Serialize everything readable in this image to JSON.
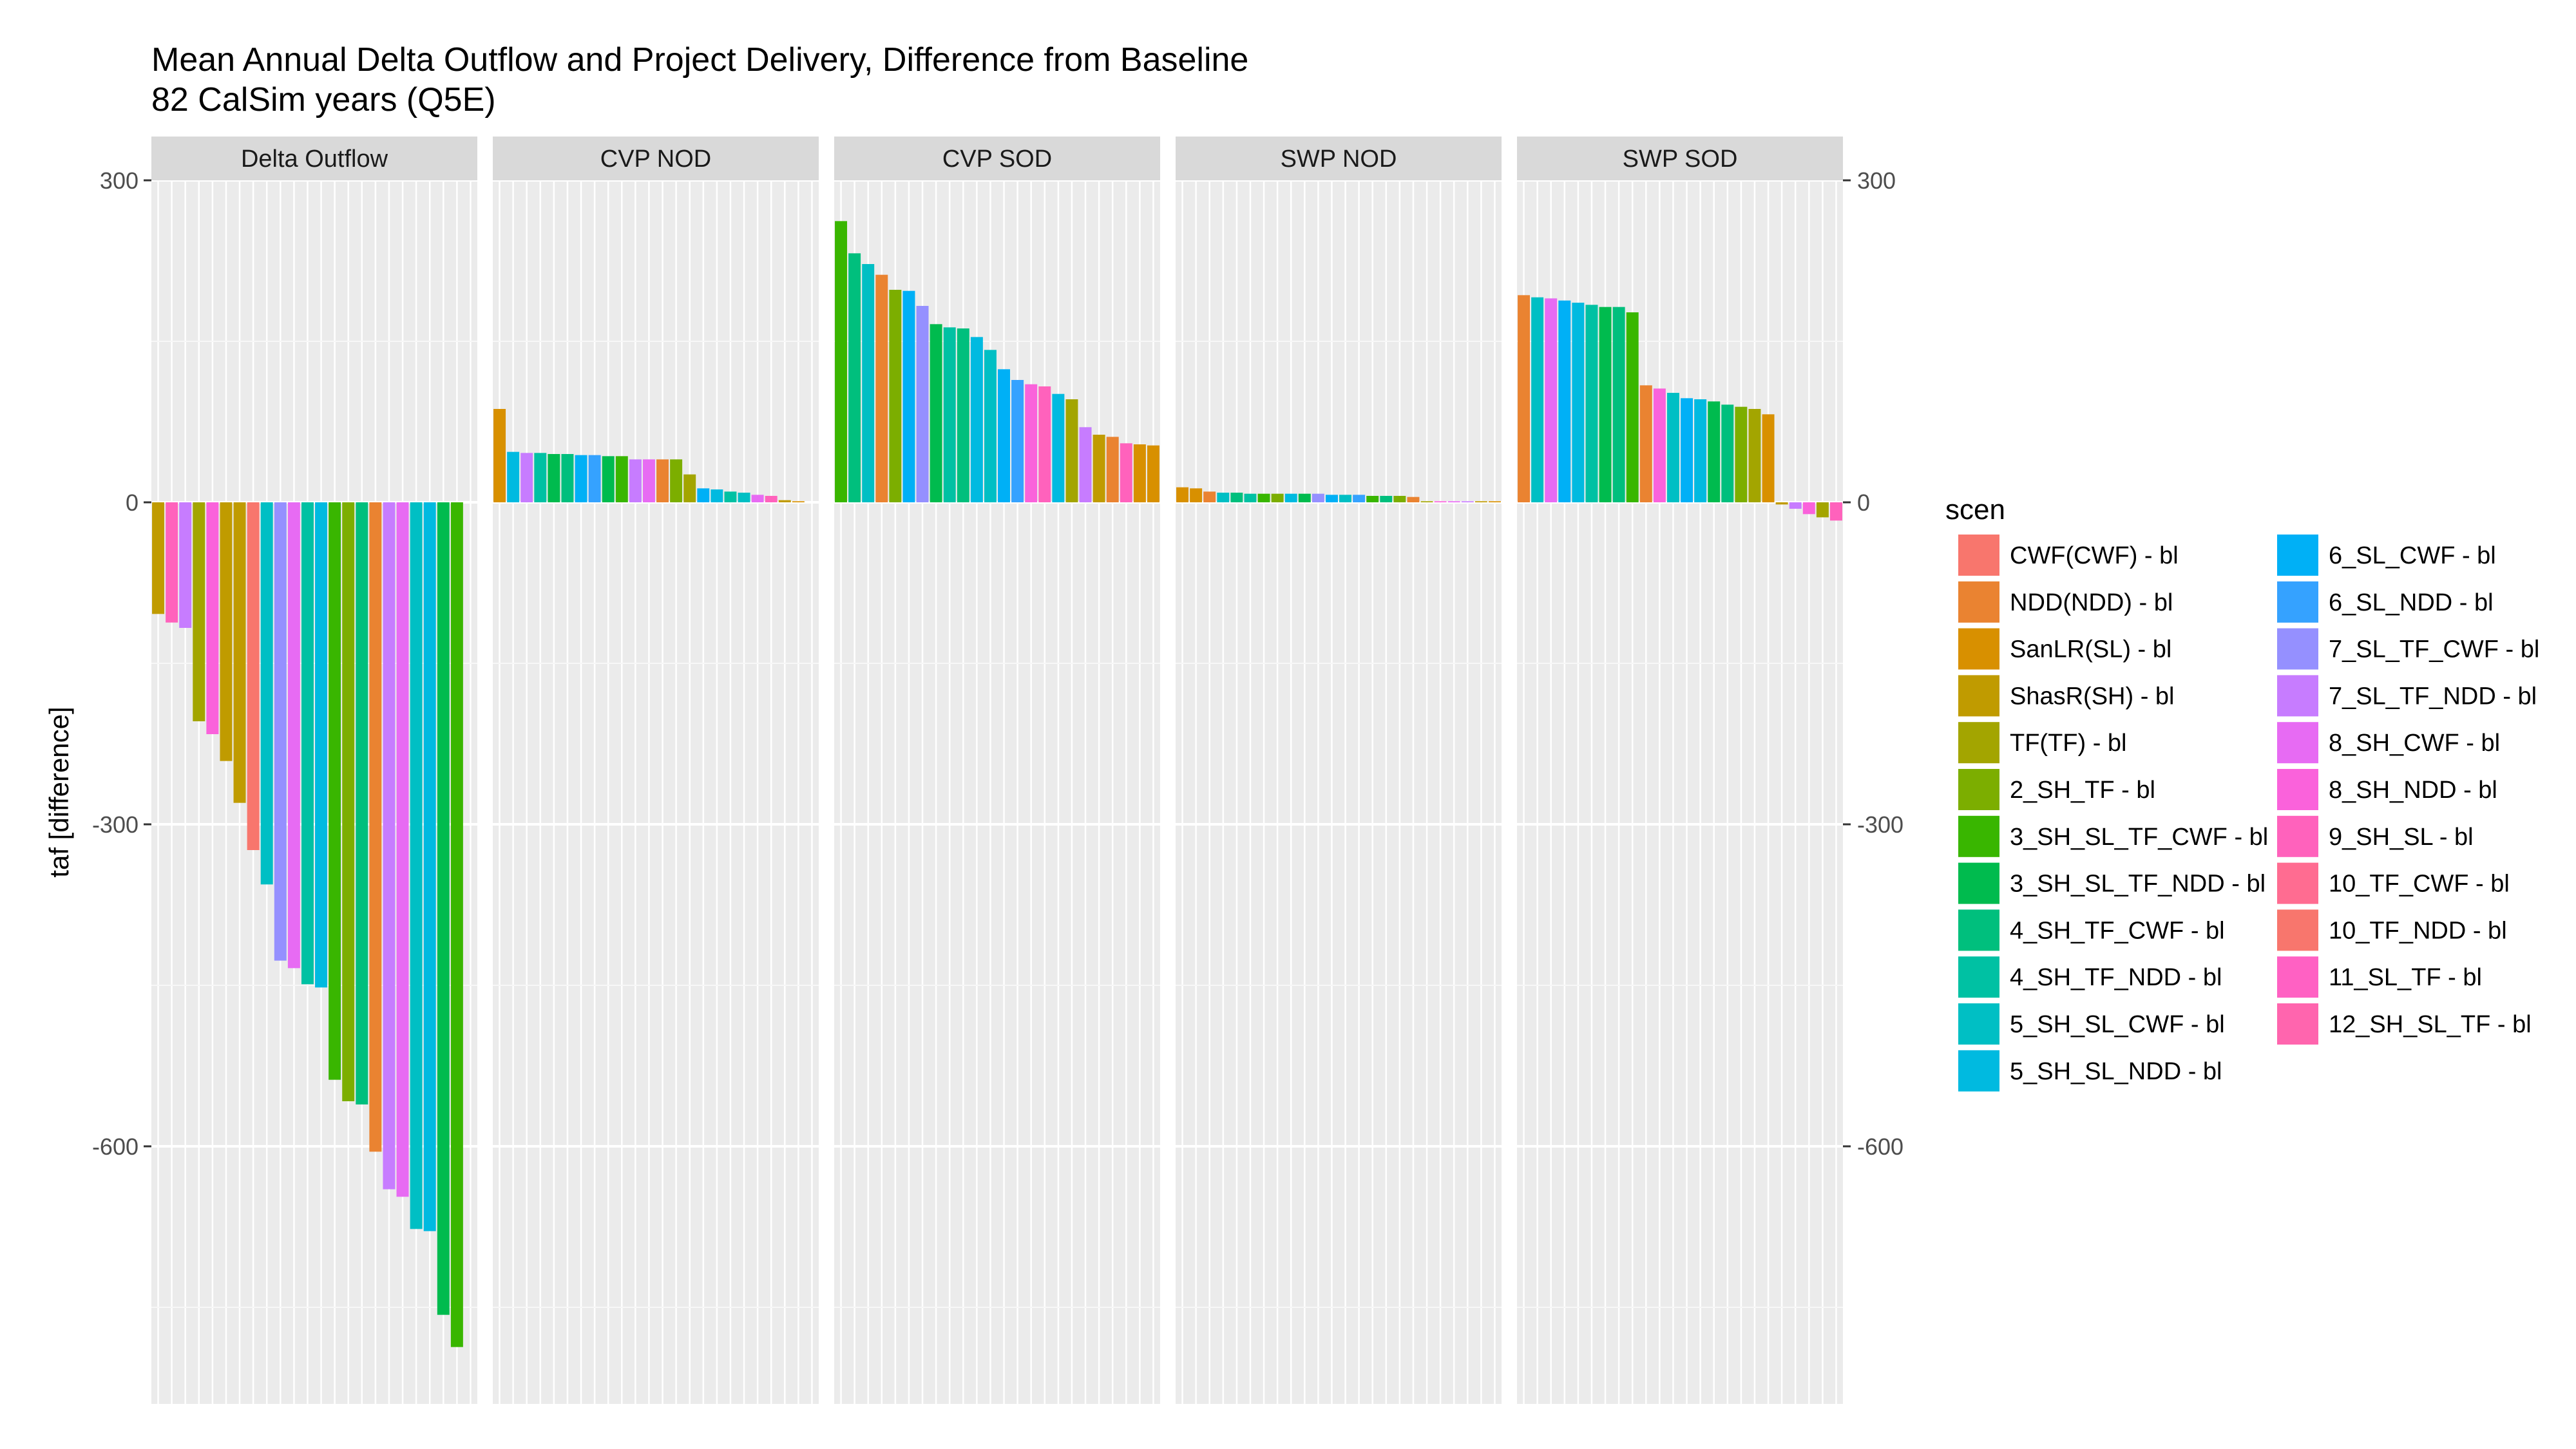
{
  "chart_data": {
    "type": "bar",
    "title": "Mean Annual Delta Outflow and Project Delivery, Difference from Baseline",
    "subtitle": "82 CalSim years (Q5E)",
    "ylabel": "taf [difference]",
    "xlabel": "",
    "ylim": [
      -840,
      300
    ],
    "yticks": [
      300,
      0,
      -300,
      -600
    ],
    "grid": true,
    "secondary_y_axis": true,
    "legend_title": "scen",
    "legend_position": "right",
    "scenarios": [
      {
        "name": "CWF(CWF) - bl",
        "color": "#F8766D"
      },
      {
        "name": "NDD(NDD) - bl",
        "color": "#EA8331"
      },
      {
        "name": "SanLR(SL) - bl",
        "color": "#D89000"
      },
      {
        "name": "ShasR(SH) - bl",
        "color": "#C09B00"
      },
      {
        "name": "TF(TF) - bl",
        "color": "#A3A500"
      },
      {
        "name": "2_SH_TF - bl",
        "color": "#7CAE00"
      },
      {
        "name": "3_SH_SL_TF_CWF - bl",
        "color": "#39B600"
      },
      {
        "name": "3_SH_SL_TF_NDD - bl",
        "color": "#00BB4E"
      },
      {
        "name": "4_SH_TF_CWF - bl",
        "color": "#00BF7D"
      },
      {
        "name": "4_SH_TF_NDD - bl",
        "color": "#00C1A3"
      },
      {
        "name": "5_SH_SL_CWF - bl",
        "color": "#00BFC4"
      },
      {
        "name": "5_SH_SL_NDD - bl",
        "color": "#00BAE0"
      },
      {
        "name": "6_SL_CWF - bl",
        "color": "#00B0F6"
      },
      {
        "name": "6_SL_NDD - bl",
        "color": "#35A2FF"
      },
      {
        "name": "7_SL_TF_CWF - bl",
        "color": "#9590FF"
      },
      {
        "name": "7_SL_TF_NDD - bl",
        "color": "#C77CFF"
      },
      {
        "name": "8_SH_CWF - bl",
        "color": "#E76BF3"
      },
      {
        "name": "8_SH_NDD - bl",
        "color": "#FA62DB"
      },
      {
        "name": "9_SH_SL - bl",
        "color": "#FF62BC"
      },
      {
        "name": "10_TF_CWF - bl",
        "color": "#FF6C91"
      },
      {
        "name": "10_TF_NDD - bl",
        "color": "#F8766D"
      },
      {
        "name": "11_SL_TF - bl",
        "color": "#FF61C3"
      },
      {
        "name": "12_SH_SL_TF - bl",
        "color": "#FF65AE"
      }
    ],
    "panels": [
      {
        "name": "Delta Outflow",
        "bars": [
          {
            "value": -104,
            "color": "#C09B00"
          },
          {
            "value": -112,
            "color": "#FF62BC"
          },
          {
            "value": -117,
            "color": "#C77CFF"
          },
          {
            "value": -204,
            "color": "#A3A500"
          },
          {
            "value": -216,
            "color": "#FA62DB"
          },
          {
            "value": -241,
            "color": "#C09B00"
          },
          {
            "value": -280,
            "color": "#C09B00"
          },
          {
            "value": -324,
            "color": "#F8766D"
          },
          {
            "value": -356,
            "color": "#00BFC4"
          },
          {
            "value": -427,
            "color": "#9590FF"
          },
          {
            "value": -434,
            "color": "#E76BF3"
          },
          {
            "value": -449,
            "color": "#00C1A3"
          },
          {
            "value": -452,
            "color": "#00BAE0"
          },
          {
            "value": -538,
            "color": "#39B600"
          },
          {
            "value": -558,
            "color": "#7CAE00"
          },
          {
            "value": -561,
            "color": "#00BF7D"
          },
          {
            "value": -605,
            "color": "#EA8331"
          },
          {
            "value": -640,
            "color": "#C77CFF"
          },
          {
            "value": -647,
            "color": "#E76BF3"
          },
          {
            "value": -677,
            "color": "#00BFC4"
          },
          {
            "value": -679,
            "color": "#00BAE0"
          },
          {
            "value": -757,
            "color": "#00BB4E"
          },
          {
            "value": -787,
            "color": "#39B600"
          }
        ]
      },
      {
        "name": "CVP NOD",
        "bars": [
          {
            "value": 87,
            "color": "#D89000"
          },
          {
            "value": 47,
            "color": "#00BAE0"
          },
          {
            "value": 46,
            "color": "#C77CFF"
          },
          {
            "value": 46,
            "color": "#00C1A3"
          },
          {
            "value": 45,
            "color": "#00BB4E"
          },
          {
            "value": 45,
            "color": "#00BF7D"
          },
          {
            "value": 44,
            "color": "#00B0F6"
          },
          {
            "value": 44,
            "color": "#35A2FF"
          },
          {
            "value": 43,
            "color": "#00BB4E"
          },
          {
            "value": 43,
            "color": "#39B600"
          },
          {
            "value": 40,
            "color": "#C77CFF"
          },
          {
            "value": 40,
            "color": "#E76BF3"
          },
          {
            "value": 40,
            "color": "#EA8331"
          },
          {
            "value": 40,
            "color": "#7CAE00"
          },
          {
            "value": 26,
            "color": "#A3A500"
          },
          {
            "value": 13,
            "color": "#00B0F6"
          },
          {
            "value": 12,
            "color": "#00BAE0"
          },
          {
            "value": 10,
            "color": "#00C1A3"
          },
          {
            "value": 9,
            "color": "#00BFC4"
          },
          {
            "value": 7,
            "color": "#E76BF3"
          },
          {
            "value": 6,
            "color": "#FF62BC"
          },
          {
            "value": 2,
            "color": "#C09B00"
          },
          {
            "value": 1,
            "color": "#D89000"
          }
        ]
      },
      {
        "name": "CVP SOD",
        "bars": [
          {
            "value": 262,
            "color": "#39B600"
          },
          {
            "value": 232,
            "color": "#00BF7D"
          },
          {
            "value": 222,
            "color": "#00BFC4"
          },
          {
            "value": 212,
            "color": "#EA8331"
          },
          {
            "value": 198,
            "color": "#7CAE00"
          },
          {
            "value": 197,
            "color": "#00B0F6"
          },
          {
            "value": 183,
            "color": "#9590FF"
          },
          {
            "value": 166,
            "color": "#00BB4E"
          },
          {
            "value": 163,
            "color": "#00C1A3"
          },
          {
            "value": 162,
            "color": "#00BF7D"
          },
          {
            "value": 154,
            "color": "#00BAE0"
          },
          {
            "value": 142,
            "color": "#00BFC4"
          },
          {
            "value": 124,
            "color": "#00B0F6"
          },
          {
            "value": 114,
            "color": "#35A2FF"
          },
          {
            "value": 110,
            "color": "#FA62DB"
          },
          {
            "value": 108,
            "color": "#FF62BC"
          },
          {
            "value": 101,
            "color": "#00BAE0"
          },
          {
            "value": 96,
            "color": "#A3A500"
          },
          {
            "value": 70,
            "color": "#C77CFF"
          },
          {
            "value": 63,
            "color": "#C09B00"
          },
          {
            "value": 61,
            "color": "#EA8331"
          },
          {
            "value": 55,
            "color": "#FF62BC"
          },
          {
            "value": 54,
            "color": "#D89000"
          },
          {
            "value": 53,
            "color": "#D89000"
          }
        ]
      },
      {
        "name": "SWP NOD",
        "bars": [
          {
            "value": 14,
            "color": "#D89000"
          },
          {
            "value": 13,
            "color": "#D89000"
          },
          {
            "value": 10,
            "color": "#EA8331"
          },
          {
            "value": 9,
            "color": "#00BFC4"
          },
          {
            "value": 9,
            "color": "#00BF7D"
          },
          {
            "value": 8,
            "color": "#00C1A3"
          },
          {
            "value": 8,
            "color": "#39B600"
          },
          {
            "value": 8,
            "color": "#7CAE00"
          },
          {
            "value": 8,
            "color": "#00BAE0"
          },
          {
            "value": 8,
            "color": "#00BB4E"
          },
          {
            "value": 8,
            "color": "#9590FF"
          },
          {
            "value": 7,
            "color": "#00B0F6"
          },
          {
            "value": 7,
            "color": "#00BFC4"
          },
          {
            "value": 7,
            "color": "#35A2FF"
          },
          {
            "value": 6,
            "color": "#39B600"
          },
          {
            "value": 6,
            "color": "#00BF7D"
          },
          {
            "value": 6,
            "color": "#7CAE00"
          },
          {
            "value": 5,
            "color": "#EA8331"
          },
          {
            "value": 1,
            "color": "#A3A500"
          },
          {
            "value": 1,
            "color": "#FA62DB"
          },
          {
            "value": 1,
            "color": "#E76BF3"
          },
          {
            "value": 1,
            "color": "#C77CFF"
          },
          {
            "value": 1,
            "color": "#C09B00"
          },
          {
            "value": 1,
            "color": "#D89000"
          }
        ]
      },
      {
        "name": "SWP SOD",
        "bars": [
          {
            "value": 193,
            "color": "#EA8331"
          },
          {
            "value": 191,
            "color": "#00BFC4"
          },
          {
            "value": 190,
            "color": "#E76BF3"
          },
          {
            "value": 188,
            "color": "#00B0F6"
          },
          {
            "value": 186,
            "color": "#00BAE0"
          },
          {
            "value": 184,
            "color": "#00C1A3"
          },
          {
            "value": 182,
            "color": "#00BB4E"
          },
          {
            "value": 182,
            "color": "#00BF7D"
          },
          {
            "value": 177,
            "color": "#39B600"
          },
          {
            "value": 109,
            "color": "#EA8331"
          },
          {
            "value": 106,
            "color": "#FA62DB"
          },
          {
            "value": 102,
            "color": "#00BFC4"
          },
          {
            "value": 97,
            "color": "#00B0F6"
          },
          {
            "value": 96,
            "color": "#00BAE0"
          },
          {
            "value": 94,
            "color": "#00BB4E"
          },
          {
            "value": 91,
            "color": "#00BF7D"
          },
          {
            "value": 89,
            "color": "#7CAE00"
          },
          {
            "value": 87,
            "color": "#A3A500"
          },
          {
            "value": 82,
            "color": "#D89000"
          },
          {
            "value": -2,
            "color": "#C09B00"
          },
          {
            "value": -6,
            "color": "#C77CFF"
          },
          {
            "value": -11,
            "color": "#FA62DB"
          },
          {
            "value": -14,
            "color": "#A3A500"
          },
          {
            "value": -17,
            "color": "#FF62BC"
          }
        ]
      }
    ]
  }
}
